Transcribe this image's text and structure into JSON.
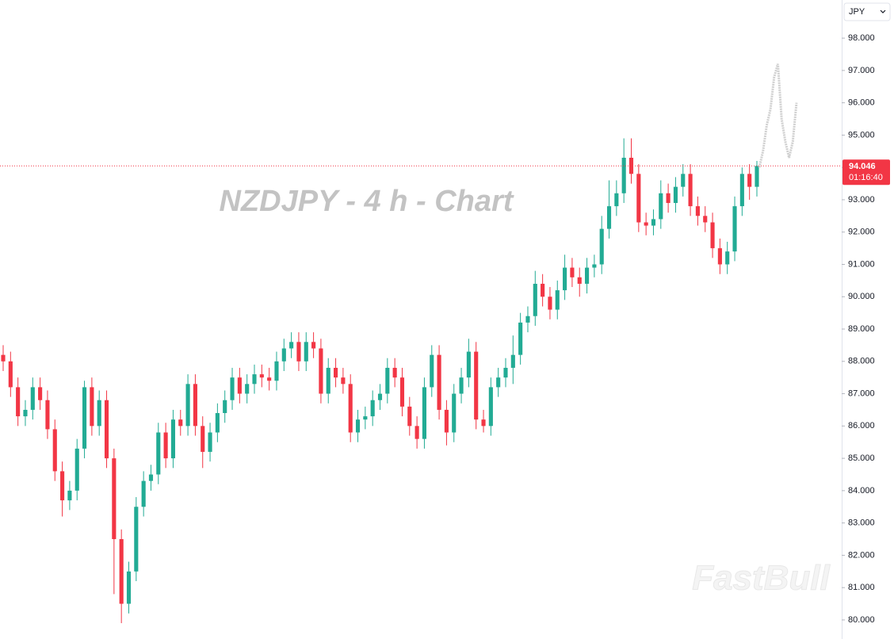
{
  "chart_data": {
    "type": "candlestick",
    "title": "NZDJPY - 4 h - Chart",
    "currency": "JPY",
    "watermark": "FastBull",
    "last_price": 94.046,
    "countdown": "01:16:40",
    "up_color": "#22ab94",
    "down_color": "#f23645",
    "projection_color": "#d0d0d0",
    "price_line_color": "#f23645",
    "ylim": [
      79.41,
      99.18
    ],
    "yticks": [
      {
        "value": 80,
        "label": "80.000"
      },
      {
        "value": 81,
        "label": "81.000"
      },
      {
        "value": 82,
        "label": "82.000"
      },
      {
        "value": 83,
        "label": "83.000"
      },
      {
        "value": 84,
        "label": "84.000"
      },
      {
        "value": 85,
        "label": "85.000"
      },
      {
        "value": 86,
        "label": "86.000"
      },
      {
        "value": 87,
        "label": "87.000"
      },
      {
        "value": 88,
        "label": "88.000"
      },
      {
        "value": 89,
        "label": "89.000"
      },
      {
        "value": 90,
        "label": "90.000"
      },
      {
        "value": 91,
        "label": "91.000"
      },
      {
        "value": 92,
        "label": "92.000"
      },
      {
        "value": 93,
        "label": "93.000"
      },
      {
        "value": 94,
        "label": "94.000"
      },
      {
        "value": 95,
        "label": "95.000"
      },
      {
        "value": 96,
        "label": "96.000"
      },
      {
        "value": 97,
        "label": "97.000"
      },
      {
        "value": 98,
        "label": "98.000"
      }
    ],
    "open": [
      88.2,
      88.0,
      87.2,
      86.3,
      86.5,
      87.2,
      86.8,
      85.9,
      84.6,
      83.7,
      84.0,
      85.3,
      87.2,
      86.0,
      86.8,
      85.0,
      82.5,
      80.5,
      81.5,
      83.5,
      84.3,
      84.5,
      85.8,
      85.0,
      86.2,
      86.0,
      87.3,
      86.0,
      85.2,
      85.8,
      86.4,
      86.8,
      87.5,
      87.0,
      87.3,
      87.6,
      87.5,
      87.4,
      88.0,
      88.4,
      88.6,
      88.0,
      88.6,
      88.4,
      87.0,
      87.8,
      87.5,
      87.3,
      85.8,
      86.2,
      86.3,
      86.8,
      87.0,
      87.8,
      87.5,
      86.6,
      86.0,
      85.6,
      87.2,
      88.2,
      86.5,
      85.8,
      87.0,
      87.5,
      88.3,
      86.2,
      86.0,
      87.2,
      87.5,
      87.8,
      88.2,
      89.2,
      89.4,
      90.4,
      90.0,
      89.6,
      90.2,
      90.9,
      90.6,
      90.4,
      90.9,
      91.0,
      92.1,
      92.8,
      93.2,
      94.3,
      93.8,
      92.3,
      92.2,
      92.4,
      93.2,
      92.9,
      93.4,
      93.8,
      92.8,
      92.5,
      92.3,
      91.5,
      91.0,
      91.4,
      92.8,
      93.8,
      93.4
    ],
    "high": [
      88.5,
      88.3,
      87.5,
      86.8,
      87.5,
      87.5,
      87.1,
      86.2,
      84.9,
      84.3,
      85.6,
      87.4,
      87.5,
      87.1,
      87.1,
      85.3,
      82.8,
      81.8,
      83.8,
      84.6,
      84.8,
      86.1,
      86.1,
      86.5,
      86.5,
      87.6,
      87.6,
      86.3,
      86.1,
      86.7,
      87.1,
      87.8,
      87.8,
      87.6,
      87.9,
      87.9,
      87.8,
      88.3,
      88.7,
      88.9,
      88.9,
      88.9,
      88.9,
      88.7,
      88.1,
      88.1,
      87.8,
      87.6,
      86.5,
      86.6,
      87.1,
      87.3,
      88.1,
      88.1,
      87.8,
      86.9,
      86.3,
      87.5,
      88.5,
      88.5,
      86.8,
      87.3,
      87.8,
      88.7,
      88.6,
      86.5,
      87.5,
      87.8,
      88.1,
      88.8,
      89.5,
      89.7,
      90.8,
      90.7,
      90.3,
      90.5,
      91.3,
      91.2,
      90.9,
      91.2,
      91.3,
      92.5,
      93.6,
      93.6,
      94.9,
      94.9,
      94.1,
      92.6,
      92.7,
      93.6,
      93.5,
      93.7,
      94.1,
      94.1,
      93.1,
      92.8,
      92.6,
      91.8,
      91.7,
      93.1,
      94.0,
      94.1,
      94.2
    ],
    "low": [
      87.7,
      86.9,
      86.0,
      86.0,
      86.2,
      86.5,
      85.6,
      84.3,
      83.2,
      83.4,
      83.7,
      85.0,
      85.7,
      85.7,
      84.7,
      80.8,
      79.9,
      80.2,
      81.2,
      83.2,
      84.0,
      84.2,
      84.7,
      84.7,
      85.7,
      85.7,
      85.7,
      84.7,
      84.9,
      85.5,
      86.1,
      86.5,
      86.7,
      86.7,
      87.0,
      87.2,
      87.1,
      87.1,
      87.7,
      88.1,
      87.7,
      87.7,
      88.1,
      86.7,
      86.7,
      87.2,
      87.0,
      85.5,
      85.5,
      85.9,
      86.0,
      86.5,
      86.7,
      87.2,
      86.3,
      85.7,
      85.3,
      85.3,
      86.9,
      86.2,
      85.4,
      85.5,
      86.7,
      87.2,
      85.9,
      85.8,
      85.7,
      86.9,
      87.2,
      87.3,
      87.9,
      88.9,
      89.1,
      89.7,
      89.3,
      89.3,
      89.9,
      90.3,
      90.0,
      90.1,
      90.6,
      90.7,
      91.8,
      92.5,
      92.9,
      93.5,
      92.0,
      91.9,
      91.9,
      92.1,
      92.6,
      92.6,
      93.1,
      92.5,
      92.2,
      92.0,
      91.2,
      90.7,
      90.7,
      91.1,
      92.5,
      93.0,
      93.1
    ],
    "close": [
      88.0,
      87.2,
      86.3,
      86.5,
      87.2,
      86.8,
      85.9,
      84.6,
      83.7,
      84.0,
      85.3,
      87.2,
      86.0,
      86.8,
      85.0,
      82.5,
      80.5,
      81.5,
      83.5,
      84.3,
      84.5,
      85.8,
      85.0,
      86.2,
      86.0,
      87.3,
      86.0,
      85.2,
      85.8,
      86.4,
      86.8,
      87.5,
      87.0,
      87.3,
      87.6,
      87.5,
      87.4,
      88.0,
      88.4,
      88.6,
      88.0,
      88.6,
      88.4,
      87.0,
      87.8,
      87.5,
      87.3,
      85.8,
      86.2,
      86.3,
      86.8,
      87.0,
      87.8,
      87.5,
      86.6,
      86.0,
      85.6,
      87.2,
      88.2,
      86.5,
      85.8,
      87.0,
      87.5,
      88.3,
      86.2,
      86.0,
      87.2,
      87.5,
      87.8,
      88.2,
      89.2,
      89.4,
      90.4,
      90.0,
      89.6,
      90.2,
      90.9,
      90.6,
      90.4,
      90.9,
      91.0,
      92.1,
      92.8,
      93.2,
      94.3,
      93.8,
      92.3,
      92.2,
      92.4,
      93.2,
      92.9,
      93.4,
      93.8,
      92.8,
      92.5,
      92.3,
      91.5,
      91.0,
      91.4,
      92.8,
      93.8,
      93.4,
      94.046
    ],
    "projection": [
      94.0,
      94.5,
      95.3,
      95.8,
      96.8,
      97.2,
      95.5,
      94.8,
      94.3,
      94.8,
      96.0
    ]
  }
}
